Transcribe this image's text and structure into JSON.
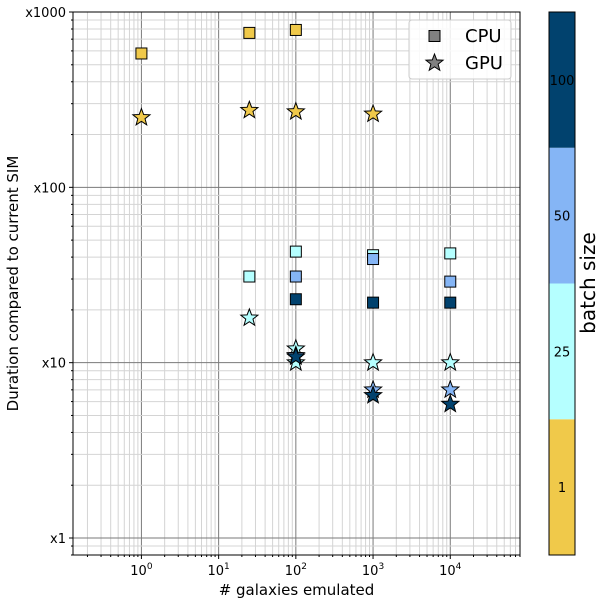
{
  "chart_data": {
    "type": "scatter",
    "xlabel": "# galaxies emulated",
    "ylabel": "Duration compared to current SIM",
    "x_scale": "log",
    "y_scale": "log",
    "xlim": [
      0.13,
      80000
    ],
    "ylim": [
      0.8,
      1000
    ],
    "x_tick_labels": [
      {
        "value": 1,
        "base": "10",
        "exp": "0"
      },
      {
        "value": 10,
        "base": "10",
        "exp": "1"
      },
      {
        "value": 100,
        "base": "10",
        "exp": "2"
      },
      {
        "value": 1000,
        "base": "10",
        "exp": "3"
      },
      {
        "value": 10000,
        "base": "10",
        "exp": "4"
      }
    ],
    "y_tick_labels": [
      {
        "value": 1,
        "label": "x1"
      },
      {
        "value": 10,
        "label": "x10"
      },
      {
        "value": 100,
        "label": "x100"
      },
      {
        "value": 1000,
        "label": "x1000"
      }
    ],
    "grid": true,
    "legend": {
      "placement": "top-right",
      "entries": [
        {
          "label": "CPU",
          "marker": "square",
          "color": "#808080"
        },
        {
          "label": "GPU",
          "marker": "star",
          "color": "#808080"
        }
      ]
    },
    "colorbar": {
      "label": "batch size",
      "categories": [
        {
          "label": "1",
          "color": "#f0c94a"
        },
        {
          "label": "25",
          "color": "#b5ffff"
        },
        {
          "label": "50",
          "color": "#85b5f5"
        },
        {
          "label": "100",
          "color": "#01426e"
        }
      ]
    },
    "series": [
      {
        "marker": "square",
        "points": [
          {
            "x": 1,
            "y": 580,
            "batch": "1"
          },
          {
            "x": 25,
            "y": 760,
            "batch": "1"
          },
          {
            "x": 100,
            "y": 790,
            "batch": "1"
          },
          {
            "x": 25,
            "y": 31,
            "batch": "25"
          },
          {
            "x": 100,
            "y": 43,
            "batch": "25"
          },
          {
            "x": 1000,
            "y": 41,
            "batch": "25"
          },
          {
            "x": 10000,
            "y": 42,
            "batch": "25"
          },
          {
            "x": 100,
            "y": 31,
            "batch": "50"
          },
          {
            "x": 1000,
            "y": 39,
            "batch": "50"
          },
          {
            "x": 10000,
            "y": 29,
            "batch": "50"
          },
          {
            "x": 100,
            "y": 23,
            "batch": "100"
          },
          {
            "x": 1000,
            "y": 22,
            "batch": "100"
          },
          {
            "x": 10000,
            "y": 22,
            "batch": "100"
          }
        ]
      },
      {
        "marker": "star",
        "points": [
          {
            "x": 1,
            "y": 250,
            "batch": "1"
          },
          {
            "x": 25,
            "y": 275,
            "batch": "1"
          },
          {
            "x": 100,
            "y": 270,
            "batch": "1"
          },
          {
            "x": 1000,
            "y": 262,
            "batch": "1"
          },
          {
            "x": 25,
            "y": 18,
            "batch": "25"
          },
          {
            "x": 100,
            "y": 12,
            "batch": "25"
          },
          {
            "x": 100,
            "y": 10,
            "batch": "25"
          },
          {
            "x": 1000,
            "y": 10,
            "batch": "25"
          },
          {
            "x": 10000,
            "y": 10,
            "batch": "25"
          },
          {
            "x": 100,
            "y": 11,
            "batch": "50"
          },
          {
            "x": 1000,
            "y": 7,
            "batch": "50"
          },
          {
            "x": 10000,
            "y": 7,
            "batch": "50"
          },
          {
            "x": 100,
            "y": 10.8,
            "batch": "100"
          },
          {
            "x": 1000,
            "y": 6.5,
            "batch": "100"
          },
          {
            "x": 10000,
            "y": 5.8,
            "batch": "100"
          }
        ]
      }
    ]
  }
}
